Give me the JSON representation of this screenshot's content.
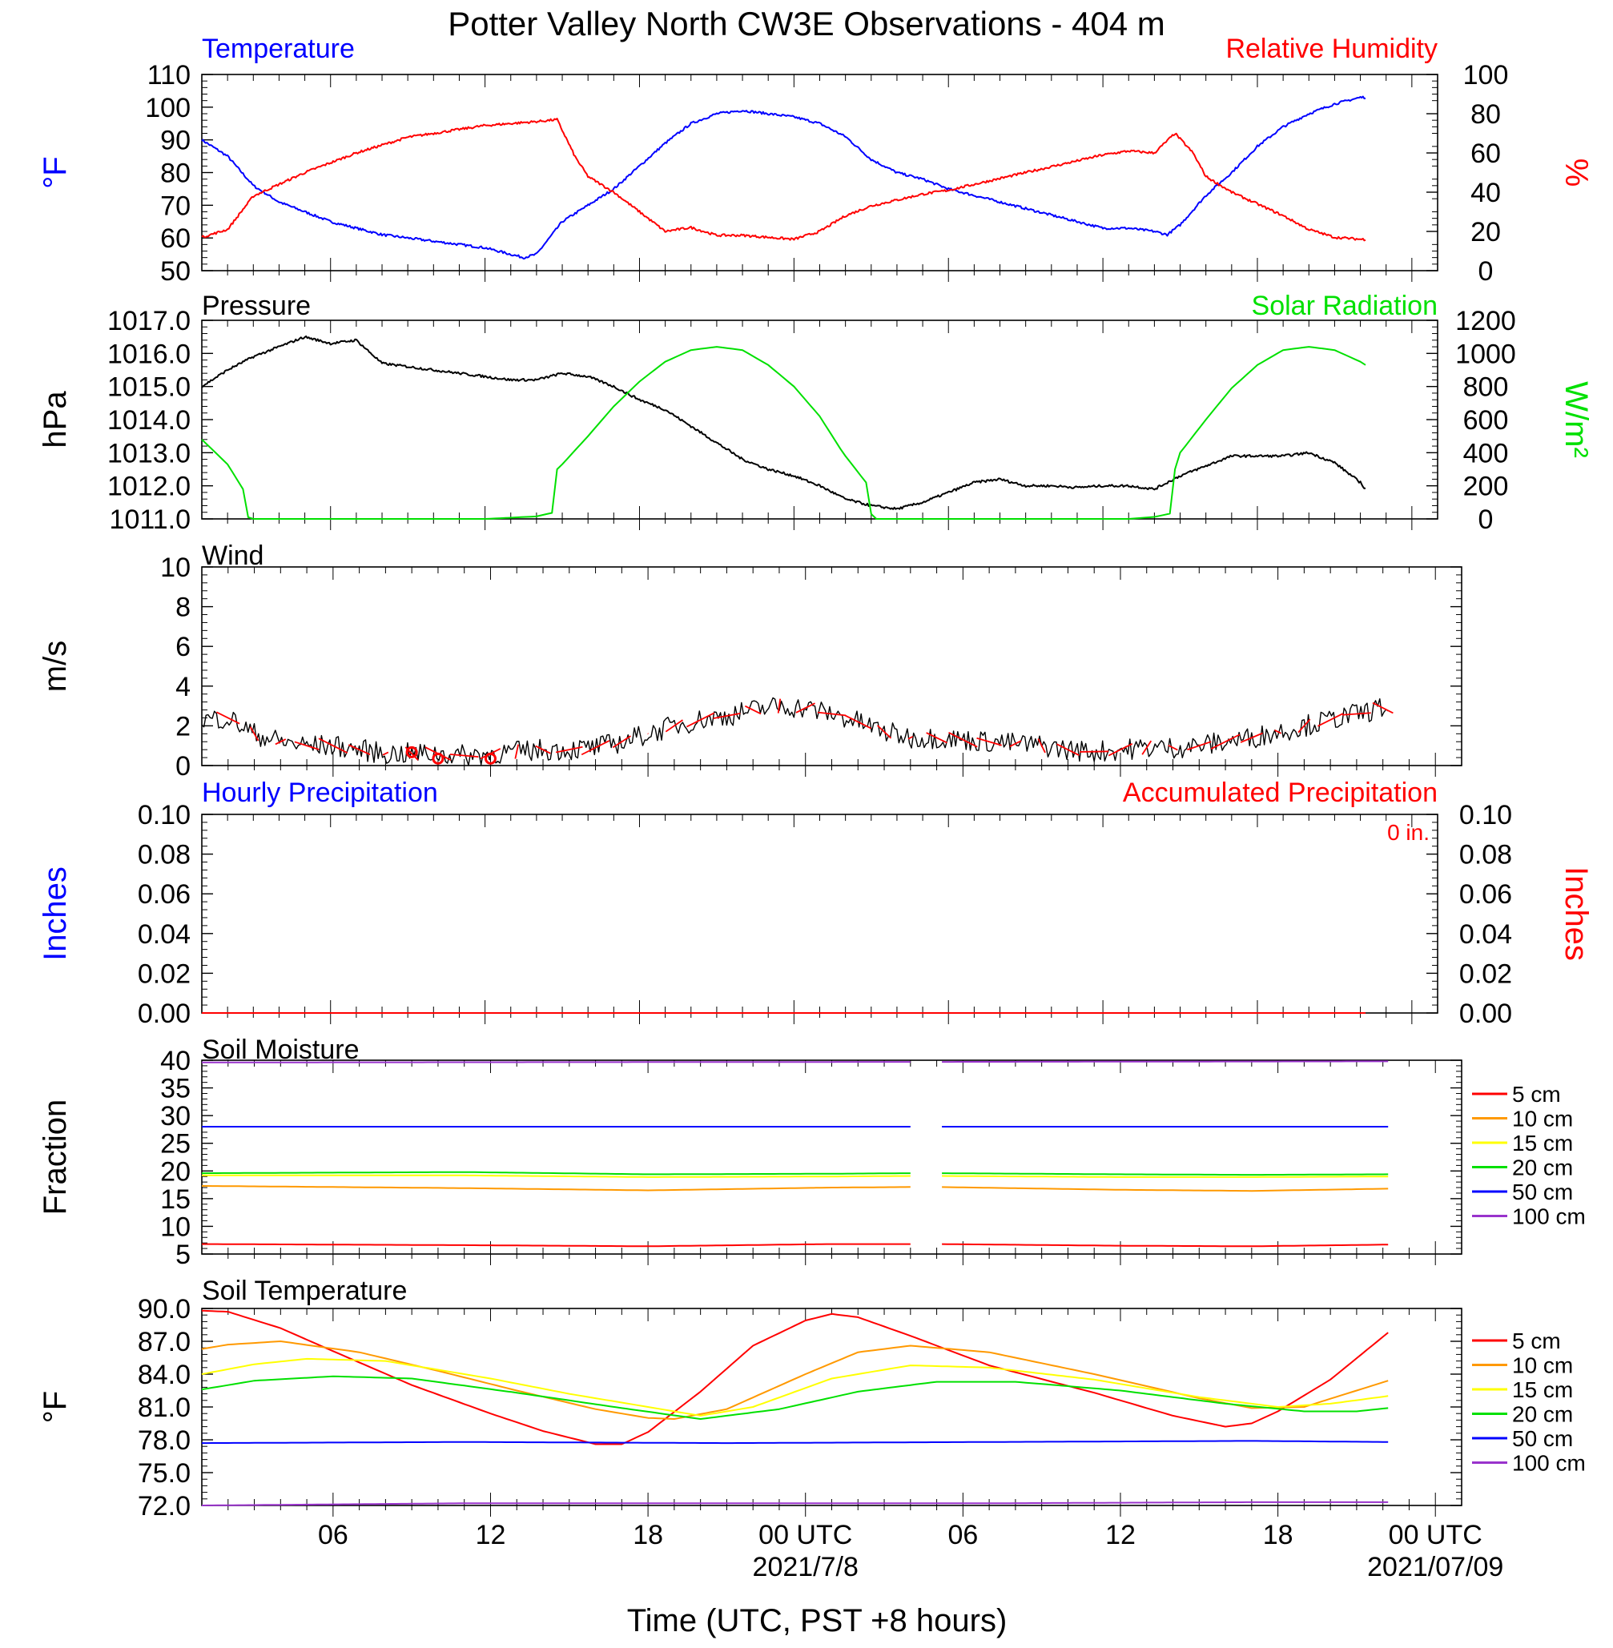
{
  "title": "Potter Valley North CW3E Observations - 404 m",
  "xaxis": {
    "label": "Time (UTC, PST +8 hours)",
    "range_hours": [
      0,
      48
    ],
    "ticks": [
      {
        "h": 5,
        "label": "06"
      },
      {
        "h": 11,
        "label": "12"
      },
      {
        "h": 17,
        "label": "18"
      },
      {
        "h": 23,
        "label": "00 UTC"
      },
      {
        "h": 29,
        "label": "06"
      },
      {
        "h": 35,
        "label": "12"
      },
      {
        "h": 41,
        "label": "18"
      },
      {
        "h": 47,
        "label": "00 UTC"
      }
    ],
    "date_labels": [
      {
        "h": 23,
        "label": "2021/7/8"
      },
      {
        "h": 47,
        "label": "2021/07/09"
      }
    ]
  },
  "colors": {
    "blue": "#0000ff",
    "red": "#ff0000",
    "green": "#00e000",
    "orange": "#ff9900",
    "yellow": "#ffff00",
    "purple": "#9933cc",
    "black": "#000000"
  },
  "chart_data": [
    {
      "type": "line",
      "id": "temp_rh",
      "left_title": "Temperature",
      "right_title": "Relative Humidity",
      "ylabel_left": "°F",
      "ylabel_right": "%",
      "ylim_left": [
        50,
        110
      ],
      "ylim_right": [
        0,
        100
      ],
      "yticks_left": [
        50,
        60,
        70,
        80,
        90,
        100,
        110
      ],
      "yticks_right": [
        0,
        20,
        40,
        60,
        80,
        100
      ],
      "series": [
        {
          "name": "Temperature",
          "axis": "left",
          "color": "#0000ff",
          "x": [
            0,
            1,
            2,
            3,
            4,
            5,
            6,
            7,
            8,
            9,
            10,
            11,
            12,
            12.5,
            13,
            14,
            15,
            16,
            17,
            18,
            19,
            20,
            21,
            22,
            23,
            24,
            25,
            26,
            27,
            28,
            29,
            30,
            31,
            32,
            33,
            34,
            35,
            36,
            37,
            37.5,
            38,
            39,
            40,
            41,
            42,
            43,
            44,
            45,
            45.2
          ],
          "values": [
            90,
            85,
            76,
            71,
            68,
            65,
            63,
            61,
            60,
            59,
            58,
            57,
            55,
            54,
            55,
            65,
            70,
            75,
            82,
            89,
            95,
            98,
            99,
            98,
            97,
            95,
            91,
            84,
            80,
            78,
            75,
            73,
            71,
            69,
            67,
            65,
            63,
            63,
            62,
            61,
            64,
            73,
            80,
            88,
            94,
            98,
            101,
            103,
            103
          ]
        },
        {
          "name": "Relative Humidity",
          "axis": "right",
          "color": "#ff0000",
          "x": [
            0,
            1,
            2,
            3,
            4,
            5,
            6,
            7,
            8,
            9,
            10,
            11,
            12,
            13,
            13.8,
            14.5,
            15,
            16,
            17,
            18,
            19,
            20,
            21,
            22,
            23,
            24,
            25,
            26,
            27,
            28,
            29,
            30,
            31,
            32,
            33,
            34,
            35,
            36,
            37,
            37.8,
            38.5,
            39,
            40,
            41,
            42,
            43,
            44,
            45,
            45.2
          ],
          "values": [
            17,
            21,
            38,
            44,
            50,
            55,
            60,
            64,
            68,
            70,
            72,
            74,
            75,
            76,
            77,
            58,
            48,
            40,
            30,
            20,
            22,
            18,
            18,
            17,
            16,
            20,
            28,
            33,
            36,
            39,
            41,
            44,
            47,
            50,
            53,
            56,
            59,
            61,
            60,
            70,
            60,
            48,
            40,
            34,
            28,
            21,
            17,
            16,
            16
          ]
        }
      ]
    },
    {
      "type": "line",
      "id": "press_solar",
      "left_title": "Pressure",
      "right_title": "Solar Radiation",
      "ylabel_left": "hPa",
      "ylabel_right": "W/m²",
      "ylim_left": [
        1011.0,
        1017.0
      ],
      "ylim_right": [
        0,
        1200
      ],
      "yticks_left": [
        1011.0,
        1012.0,
        1013.0,
        1014.0,
        1015.0,
        1016.0,
        1017.0
      ],
      "yticks_left_labels": [
        "1011.0",
        "1012.0",
        "1013.0",
        "1014.0",
        "1015.0",
        "1016.0",
        "1017.0"
      ],
      "yticks_right": [
        0,
        200,
        400,
        600,
        800,
        1000,
        1200
      ],
      "series": [
        {
          "name": "Pressure",
          "axis": "left",
          "color": "#000000",
          "x": [
            0,
            1,
            2,
            3,
            4,
            5,
            6,
            7,
            8,
            9,
            10,
            11,
            12,
            13,
            14,
            15,
            16,
            17,
            18,
            19,
            20,
            21,
            22,
            23,
            24,
            25,
            26,
            27,
            28,
            29,
            30,
            31,
            32,
            33,
            34,
            35,
            36,
            37,
            38,
            39,
            40,
            41,
            42,
            43,
            44,
            45,
            45.2
          ],
          "values": [
            1015.0,
            1015.5,
            1015.9,
            1016.2,
            1016.5,
            1016.3,
            1016.4,
            1015.7,
            1015.6,
            1015.5,
            1015.4,
            1015.3,
            1015.2,
            1015.2,
            1015.4,
            1015.3,
            1015.0,
            1014.6,
            1014.3,
            1013.8,
            1013.3,
            1012.8,
            1012.5,
            1012.3,
            1012.0,
            1011.6,
            1011.4,
            1011.3,
            1011.5,
            1011.8,
            1012.1,
            1012.2,
            1012.0,
            1012.0,
            1011.95,
            1012.0,
            1012.0,
            1011.9,
            1012.3,
            1012.6,
            1012.9,
            1012.9,
            1012.9,
            1013.0,
            1012.7,
            1012.1,
            1011.9
          ]
        },
        {
          "name": "Solar Radiation",
          "axis": "right",
          "color": "#00e000",
          "x": [
            0,
            1,
            1.6,
            1.7,
            1.8,
            2,
            3,
            5,
            8,
            11,
            13,
            13.7,
            13.8,
            14,
            15,
            16,
            17,
            18,
            19,
            20,
            21,
            22,
            23,
            24,
            24.9,
            25.9,
            26,
            26.2,
            27,
            30,
            33,
            36,
            37,
            37.7,
            37.8,
            38,
            39,
            40,
            41,
            42,
            43,
            44,
            45,
            45.2
          ],
          "values": [
            480,
            330,
            180,
            130,
            10,
            0,
            0,
            0,
            0,
            0,
            15,
            40,
            300,
            330,
            500,
            680,
            830,
            950,
            1020,
            1040,
            1020,
            930,
            800,
            620,
            400,
            200,
            30,
            0,
            0,
            0,
            0,
            0,
            12,
            35,
            300,
            400,
            600,
            790,
            930,
            1020,
            1040,
            1020,
            950,
            930
          ]
        }
      ]
    },
    {
      "type": "line",
      "id": "wind",
      "left_title": "Wind",
      "ylabel_left": "m/s",
      "ylim_left": [
        0,
        10
      ],
      "yticks_left": [
        0,
        2,
        4,
        6,
        8,
        10
      ],
      "series": [
        {
          "name": "Wind",
          "axis": "left",
          "color": "#000000",
          "x": [
            0,
            1,
            2,
            3,
            4,
            5,
            6,
            7,
            8,
            9,
            10,
            11,
            12,
            13,
            14,
            15,
            16,
            17,
            18,
            19,
            20,
            21,
            22,
            23,
            24,
            25,
            26,
            27,
            28,
            29,
            30,
            31,
            32,
            33,
            34,
            35,
            36,
            37,
            38,
            39,
            40,
            41,
            42,
            43,
            44,
            45,
            45.2
          ],
          "values": [
            2.3,
            2.4,
            1.6,
            1.2,
            1.0,
            1.0,
            0.8,
            0.6,
            0.6,
            0.6,
            0.5,
            0.6,
            0.7,
            0.8,
            0.8,
            0.9,
            1.2,
            1.6,
            2.0,
            2.3,
            2.5,
            2.8,
            3.0,
            2.9,
            2.6,
            2.2,
            1.7,
            1.4,
            1.4,
            1.3,
            1.2,
            1.1,
            1.0,
            0.8,
            0.7,
            0.8,
            0.9,
            0.9,
            1.0,
            1.2,
            1.4,
            1.7,
            2.0,
            2.3,
            2.6,
            2.9,
            3.0
          ]
        }
      ],
      "calm_marker_hours": [
        8,
        9,
        11
      ]
    },
    {
      "type": "line",
      "id": "precip",
      "left_title": "Hourly Precipitation",
      "right_title": "Accumulated Precipitation",
      "annotation": "0 in.",
      "ylabel_left": "Inches",
      "ylabel_right": "Inches",
      "ylim_left": [
        0,
        0.1
      ],
      "ylim_right": [
        0,
        0.1
      ],
      "yticks_left": [
        0,
        0.02,
        0.04,
        0.06,
        0.08,
        0.1
      ],
      "yticks_left_labels": [
        "0.00",
        "0.02",
        "0.04",
        "0.06",
        "0.08",
        "0.10"
      ],
      "yticks_right": [
        0,
        0.02,
        0.04,
        0.06,
        0.08,
        0.1
      ],
      "yticks_right_labels": [
        "0.00",
        "0.02",
        "0.04",
        "0.06",
        "0.08",
        "0.10"
      ],
      "series": [
        {
          "name": "Hourly Precipitation",
          "axis": "left",
          "color": "#0000ff",
          "x": [
            0,
            45.2
          ],
          "values": [
            0,
            0
          ]
        },
        {
          "name": "Accumulated Precipitation",
          "axis": "right",
          "color": "#ff0000",
          "x": [
            0,
            45.2
          ],
          "values": [
            0,
            0
          ]
        }
      ]
    },
    {
      "type": "line",
      "id": "soil_moist",
      "left_title": "Soil Moisture",
      "ylabel_left": "Fraction",
      "ylim_left": [
        5,
        40
      ],
      "yticks_left": [
        5,
        10,
        15,
        20,
        25,
        30,
        35,
        40
      ],
      "gap_hours": [
        27,
        28
      ],
      "legend": [
        "5 cm",
        "10 cm",
        "15 cm",
        "20 cm",
        "50 cm",
        "100 cm"
      ],
      "series": [
        {
          "name": "5 cm",
          "color": "#ff0000",
          "x": [
            0,
            10,
            17,
            24,
            27,
            28,
            35,
            40,
            45.2
          ],
          "values": [
            6.8,
            6.6,
            6.4,
            6.8,
            6.8,
            6.8,
            6.5,
            6.4,
            6.7
          ]
        },
        {
          "name": "10 cm",
          "color": "#ff9900",
          "x": [
            0,
            10,
            17,
            24,
            27,
            28,
            35,
            40,
            45.2
          ],
          "values": [
            17.3,
            16.9,
            16.5,
            17.0,
            17.1,
            17.1,
            16.6,
            16.4,
            16.8
          ]
        },
        {
          "name": "15 cm",
          "color": "#ffff00",
          "x": [
            0,
            10,
            17,
            24,
            27,
            28,
            35,
            40,
            45.2
          ],
          "values": [
            19.2,
            19.2,
            18.9,
            19.0,
            19.1,
            19.1,
            18.9,
            18.9,
            19.0
          ]
        },
        {
          "name": "20 cm",
          "color": "#00e000",
          "x": [
            0,
            10,
            17,
            24,
            27,
            28,
            35,
            40,
            45.2
          ],
          "values": [
            19.6,
            19.8,
            19.4,
            19.5,
            19.6,
            19.6,
            19.4,
            19.3,
            19.4
          ]
        },
        {
          "name": "50 cm",
          "color": "#0000ff",
          "x": [
            0,
            27,
            28,
            45.2
          ],
          "values": [
            28.0,
            28.0,
            28.0,
            28.0
          ]
        },
        {
          "name": "100 cm",
          "color": "#9933cc",
          "x": [
            0,
            27,
            28,
            45.2
          ],
          "values": [
            39.6,
            39.7,
            39.7,
            39.8
          ]
        }
      ]
    },
    {
      "type": "line",
      "id": "soil_temp",
      "left_title": "Soil Temperature",
      "ylabel_left": "°F",
      "ylim_left": [
        72,
        90
      ],
      "yticks_left": [
        72,
        75,
        78,
        81,
        84,
        87,
        90
      ],
      "yticks_left_labels": [
        "72.0",
        "75.0",
        "78.0",
        "81.0",
        "84.0",
        "87.0",
        "90.0"
      ],
      "legend": [
        "5 cm",
        "10 cm",
        "15 cm",
        "20 cm",
        "50 cm",
        "100 cm"
      ],
      "series": [
        {
          "name": "5 cm",
          "color": "#ff0000",
          "x": [
            0,
            1,
            3,
            5,
            8,
            11,
            13,
            15,
            16,
            17,
            19,
            21,
            23,
            24,
            25,
            27,
            30,
            34,
            37,
            39,
            40,
            41,
            43,
            45.2
          ],
          "values": [
            89.8,
            89.7,
            88.2,
            86.1,
            83.0,
            80.4,
            78.8,
            77.6,
            77.6,
            78.7,
            82.4,
            86.6,
            88.9,
            89.5,
            89.2,
            87.5,
            84.8,
            82.3,
            80.2,
            79.2,
            79.5,
            80.6,
            83.5,
            87.8
          ]
        },
        {
          "name": "10 cm",
          "color": "#ff9900",
          "x": [
            0,
            1,
            3,
            6,
            9,
            12,
            15,
            17,
            18,
            20,
            23,
            25,
            27,
            30,
            34,
            38,
            40,
            42,
            45.2
          ],
          "values": [
            86.3,
            86.7,
            87.0,
            86.0,
            84.3,
            82.5,
            80.8,
            80.0,
            79.9,
            80.8,
            84.0,
            86.0,
            86.6,
            86.0,
            84.0,
            81.8,
            80.9,
            81.0,
            83.4
          ]
        },
        {
          "name": "15 cm",
          "color": "#ffff00",
          "x": [
            0,
            2,
            4,
            7,
            11,
            14,
            17,
            19,
            21,
            24,
            27,
            30,
            34,
            38,
            41,
            43,
            45.2
          ],
          "values": [
            84.0,
            84.9,
            85.4,
            85.2,
            83.6,
            82.2,
            81.0,
            80.2,
            81.0,
            83.6,
            84.8,
            84.6,
            83.5,
            81.9,
            81.0,
            81.3,
            82.0
          ]
        },
        {
          "name": "20 cm",
          "color": "#00e000",
          "x": [
            0,
            2,
            5,
            8,
            12,
            16,
            19,
            22,
            25,
            28,
            31,
            35,
            39,
            42,
            44,
            45.2
          ],
          "values": [
            82.6,
            83.4,
            83.8,
            83.6,
            82.3,
            80.9,
            79.9,
            80.8,
            82.4,
            83.3,
            83.3,
            82.5,
            81.3,
            80.6,
            80.6,
            80.9
          ]
        },
        {
          "name": "50 cm",
          "color": "#0000ff",
          "x": [
            0,
            10,
            20,
            30,
            40,
            45.2
          ],
          "values": [
            77.7,
            77.8,
            77.7,
            77.8,
            77.9,
            77.8
          ]
        },
        {
          "name": "100 cm",
          "color": "#9933cc",
          "x": [
            0,
            10,
            20,
            30,
            40,
            45.2
          ],
          "values": [
            72.0,
            72.2,
            72.2,
            72.2,
            72.3,
            72.3
          ]
        }
      ]
    }
  ]
}
